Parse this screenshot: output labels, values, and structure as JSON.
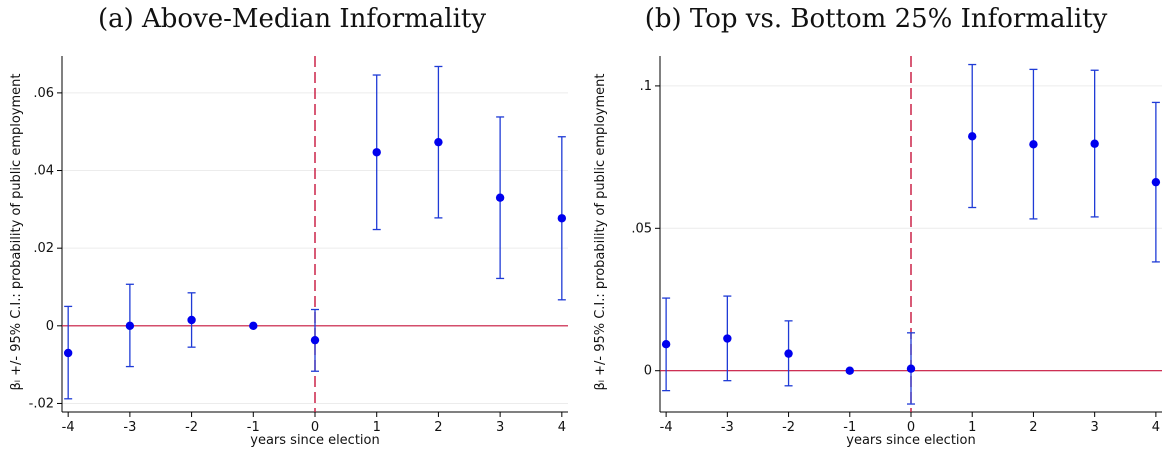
{
  "colors": {
    "marker": "#0000ee",
    "ci": "#1f3bd6",
    "zero_line": "#c8143c",
    "event_line": "#c8143c",
    "grid": "#ececec",
    "axis": "#000000"
  },
  "chart_data": [
    {
      "type": "scatter",
      "panel_title": "(a) Above-Median Informality",
      "xlabel": "years since election",
      "ylabel": "βₗ +/- 95% C.I.: probability of public employment",
      "x_ticks": [
        "-4",
        "-3",
        "-2",
        "-1",
        "0",
        "1",
        "2",
        "3",
        "4"
      ],
      "y_ticks": [
        "-.02",
        "0",
        ".02",
        ".04",
        ".06"
      ],
      "y_tick_values": [
        -0.02,
        0,
        0.02,
        0.04,
        0.06
      ],
      "xlim": [
        -4.1,
        4.1
      ],
      "ylim": [
        -0.0222,
        0.0695
      ],
      "reference_hline": 0,
      "reference_vline": 0,
      "grid": true,
      "series": [
        {
          "x": [
            -4,
            -3,
            -2,
            -1,
            0,
            1,
            2,
            3,
            4
          ],
          "y": [
            -0.007,
            0.0,
            0.0015,
            0.0,
            -0.0037,
            0.0447,
            0.0473,
            0.033,
            0.0277
          ],
          "ci_low": [
            -0.0188,
            -0.0105,
            -0.0055,
            0.0,
            -0.0117,
            0.0248,
            0.0278,
            0.0122,
            0.0067
          ],
          "ci_high": [
            0.005,
            0.0107,
            0.0085,
            0.0,
            0.0042,
            0.0646,
            0.0668,
            0.0538,
            0.0487
          ]
        }
      ]
    },
    {
      "type": "scatter",
      "panel_title": "(b) Top vs. Bottom 25% Informality",
      "xlabel": "years since election",
      "ylabel": "βₗ +/- 95% C.I.: probability of public employment",
      "x_ticks": [
        "-4",
        "-3",
        "-2",
        "-1",
        "0",
        "1",
        "2",
        "3",
        "4"
      ],
      "y_ticks": [
        "0",
        ".05",
        ".1"
      ],
      "y_tick_values": [
        0,
        0.05,
        0.1
      ],
      "xlim": [
        -4.1,
        4.1
      ],
      "ylim": [
        -0.0145,
        0.1105
      ],
      "reference_hline": 0,
      "reference_vline": 0,
      "grid": true,
      "series": [
        {
          "x": [
            -4,
            -3,
            -2,
            -1,
            0,
            1,
            2,
            3,
            4
          ],
          "y": [
            0.0093,
            0.0113,
            0.006,
            0.0,
            0.0007,
            0.0823,
            0.0795,
            0.0797,
            0.0662
          ],
          "ci_low": [
            -0.007,
            -0.0035,
            -0.0053,
            0.0,
            -0.0117,
            0.0573,
            0.0533,
            0.054,
            0.0382
          ],
          "ci_high": [
            0.0255,
            0.0262,
            0.0175,
            0.0,
            0.0133,
            0.1075,
            0.1058,
            0.1055,
            0.0942
          ]
        }
      ]
    }
  ]
}
